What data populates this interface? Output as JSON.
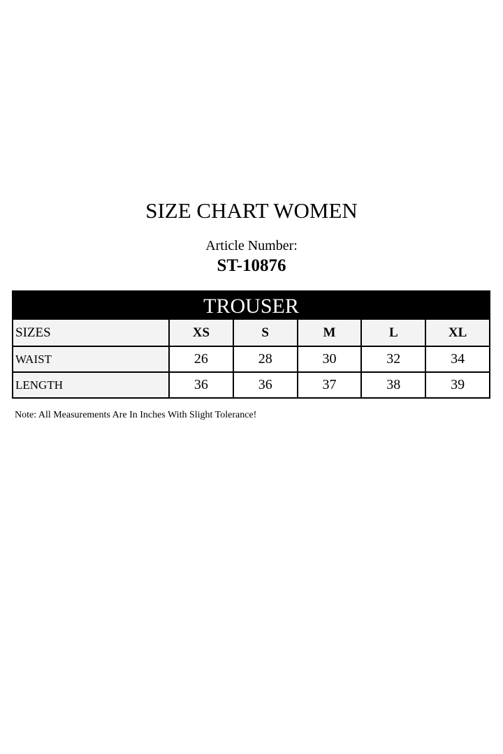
{
  "title": "SIZE CHART WOMEN",
  "article_label": "Article Number:",
  "article_number": "ST-10876",
  "table": {
    "section": "TROUSER",
    "header_label": "SIZES",
    "sizes": [
      "XS",
      "S",
      "M",
      "L",
      "XL"
    ],
    "rows": [
      {
        "label": "WAIST",
        "values": [
          "26",
          "28",
          "30",
          "32",
          "34"
        ]
      },
      {
        "label": "LENGTH",
        "values": [
          "36",
          "36",
          "37",
          "38",
          "39"
        ]
      }
    ]
  },
  "note": "Note: All Measurements Are In Inches With Slight Tolerance!"
}
